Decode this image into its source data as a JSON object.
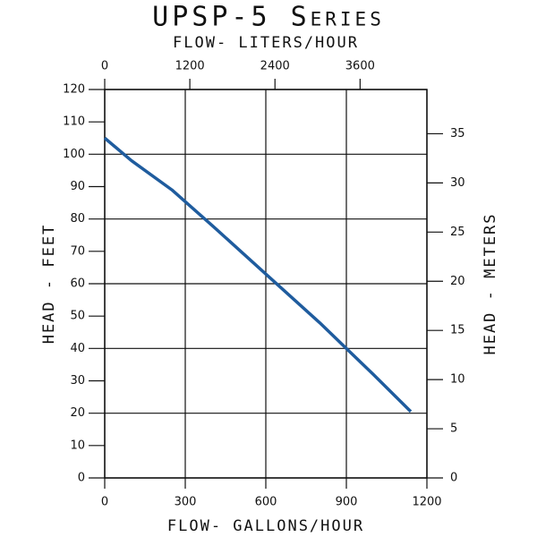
{
  "chart_data": {
    "type": "line",
    "title": "UPSP-5 Series",
    "x_label": "FLOW- GALLONS/HOUR",
    "x2_label": "FLOW- LITERS/HOUR",
    "y_label": "HEAD - FEET",
    "y2_label": "HEAD - METERS",
    "x": [
      0,
      100,
      250,
      400,
      600,
      800,
      900,
      1000,
      1140
    ],
    "series": [
      {
        "name": "UPSP-5",
        "color": "#1f5c9e",
        "values": [
          105,
          98,
          89,
          78,
          63,
          48,
          40,
          32,
          20.5
        ]
      }
    ],
    "xlim": [
      0,
      1200
    ],
    "xticks": [
      0,
      300,
      600,
      900,
      1200
    ],
    "x2lim": [
      0,
      4542
    ],
    "x2ticks": [
      0,
      1200,
      2400,
      3600
    ],
    "ylim": [
      0,
      120
    ],
    "yticks": [
      0,
      10,
      20,
      30,
      40,
      50,
      60,
      70,
      80,
      90,
      100,
      110,
      120
    ],
    "y2lim": [
      0,
      39.5
    ],
    "y2ticks": [
      0,
      5,
      10,
      15,
      20,
      25,
      30,
      35
    ],
    "grid": true
  }
}
